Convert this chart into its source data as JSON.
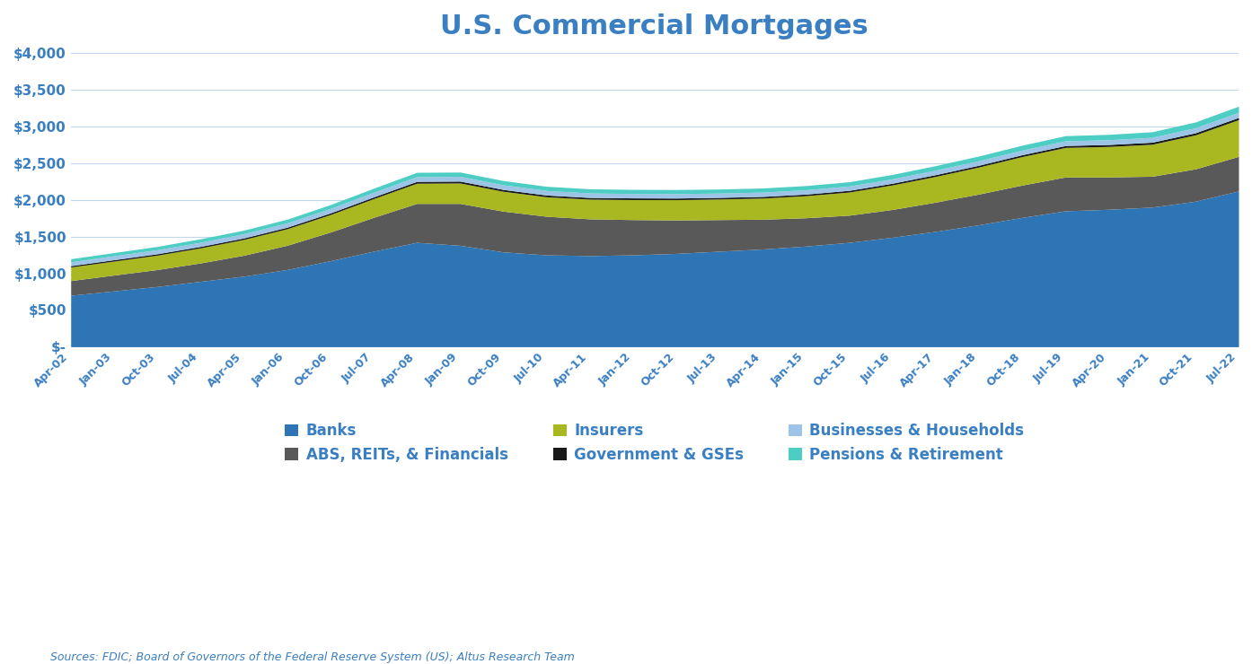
{
  "title": "U.S. Commercial Mortgages",
  "title_color": "#3A7FC1",
  "source_text": "Sources: FDIC; Board of Governors of the Federal Reserve System (US); Altus Research Team",
  "ylim": [
    0,
    4000
  ],
  "yticks": [
    0,
    500,
    1000,
    1500,
    2000,
    2500,
    3000,
    3500,
    4000
  ],
  "ytick_labels": [
    "$-",
    "$500",
    "$1,000",
    "$1,500",
    "$2,000",
    "$2,500",
    "$3,000",
    "$3,500",
    "$4,000"
  ],
  "background_color": "#ffffff",
  "grid_color": "#BDD7EE",
  "series_labels": [
    "Banks",
    "ABS, REITs, & Financials",
    "Insurers",
    "Government & GSEs",
    "Businesses & Households",
    "Pensions & Retirement"
  ],
  "series_colors": [
    "#2E75B6",
    "#595959",
    "#A9B820",
    "#1A1A1A",
    "#9DC3E6",
    "#4ECDC4"
  ],
  "xtick_labels": [
    "Apr-02",
    "Jan-03",
    "Oct-03",
    "Jul-04",
    "Apr-05",
    "Jan-06",
    "Oct-06",
    "Jul-07",
    "Apr-08",
    "Jan-09",
    "Oct-09",
    "Jul-10",
    "Apr-11",
    "Jan-12",
    "Oct-12",
    "Jul-13",
    "Apr-14",
    "Jan-15",
    "Oct-15",
    "Jul-16",
    "Apr-17",
    "Jan-18",
    "Oct-18",
    "Jul-19",
    "Apr-20",
    "Jan-21",
    "Oct-21",
    "Jul-22"
  ],
  "data": {
    "banks": [
      700,
      760,
      820,
      890,
      960,
      1050,
      1170,
      1300,
      1420,
      1380,
      1290,
      1250,
      1240,
      1250,
      1270,
      1300,
      1330,
      1370,
      1420,
      1490,
      1570,
      1660,
      1760,
      1850,
      1870,
      1900,
      1980,
      2120
    ],
    "abs_reits": [
      200,
      215,
      230,
      250,
      285,
      330,
      390,
      460,
      530,
      570,
      555,
      525,
      500,
      480,
      455,
      430,
      405,
      385,
      370,
      378,
      398,
      418,
      440,
      460,
      440,
      420,
      440,
      470
    ],
    "insurers": [
      185,
      190,
      196,
      205,
      215,
      225,
      238,
      255,
      275,
      278,
      270,
      265,
      268,
      272,
      276,
      280,
      288,
      300,
      315,
      334,
      350,
      368,
      388,
      402,
      415,
      435,
      462,
      500
    ],
    "govt_gses": [
      18,
      19,
      19,
      20,
      20,
      21,
      22,
      23,
      25,
      26,
      25,
      24,
      23,
      23,
      22,
      22,
      22,
      22,
      23,
      23,
      24,
      24,
      25,
      26,
      27,
      28,
      29,
      30
    ],
    "biz_hh": [
      52,
      54,
      55,
      57,
      58,
      59,
      61,
      63,
      65,
      64,
      63,
      62,
      61,
      60,
      60,
      59,
      59,
      59,
      59,
      60,
      61,
      62,
      63,
      64,
      65,
      66,
      68,
      70
    ],
    "pensions": [
      42,
      43,
      45,
      47,
      48,
      50,
      52,
      55,
      58,
      59,
      58,
      57,
      57,
      56,
      56,
      55,
      56,
      57,
      58,
      60,
      62,
      64,
      67,
      70,
      73,
      76,
      79,
      83
    ]
  }
}
